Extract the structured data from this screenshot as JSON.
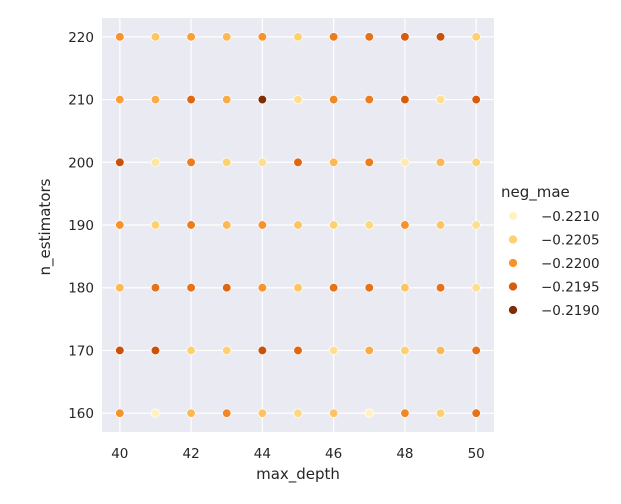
{
  "chart_data": {
    "type": "scatter",
    "title": "",
    "xlabel": "max_depth",
    "ylabel": "n_estimators",
    "xlim": [
      39.5,
      50.5
    ],
    "ylim": [
      157,
      223
    ],
    "xticks": [
      40,
      42,
      44,
      46,
      48,
      50
    ],
    "xtick_labels": [
      "40",
      "42",
      "44",
      "46",
      "48",
      "50"
    ],
    "yticks": [
      160,
      170,
      180,
      190,
      200,
      210,
      220
    ],
    "ytick_labels": [
      "160",
      "170",
      "180",
      "190",
      "200",
      "210",
      "220"
    ],
    "grid": true,
    "background": "#eaeaf2",
    "hue": "neg_mae",
    "legend": {
      "title": "neg_mae",
      "placement": "right",
      "entries": [
        {
          "label": "−0.2210",
          "value": -0.221,
          "color": "#fff2c2"
        },
        {
          "label": "−0.2205",
          "value": -0.2205,
          "color": "#fdd170"
        },
        {
          "label": "−0.2200",
          "value": -0.22,
          "color": "#f7932a"
        },
        {
          "label": "−0.2195",
          "value": -0.2195,
          "color": "#d95c0c"
        },
        {
          "label": "−0.2190",
          "value": -0.219,
          "color": "#7e2d05"
        }
      ]
    },
    "columns": [
      "max_depth",
      "n_estimators",
      "neg_mae"
    ],
    "points": [
      [
        40,
        220,
        -0.22
      ],
      [
        41,
        220,
        -0.2204
      ],
      [
        42,
        220,
        -0.2201
      ],
      [
        43,
        220,
        -0.2203
      ],
      [
        44,
        220,
        -0.22
      ],
      [
        45,
        220,
        -0.2205
      ],
      [
        46,
        220,
        -0.2198
      ],
      [
        47,
        220,
        -0.2197
      ],
      [
        48,
        220,
        -0.2195
      ],
      [
        49,
        220,
        -0.2194
      ],
      [
        50,
        220,
        -0.2205
      ],
      [
        40,
        210,
        -0.2201
      ],
      [
        41,
        210,
        -0.2202
      ],
      [
        42,
        210,
        -0.2196
      ],
      [
        43,
        210,
        -0.2202
      ],
      [
        44,
        210,
        -0.2189
      ],
      [
        45,
        210,
        -0.2207
      ],
      [
        46,
        210,
        -0.2199
      ],
      [
        47,
        210,
        -0.2198
      ],
      [
        48,
        210,
        -0.2195
      ],
      [
        49,
        210,
        -0.2207
      ],
      [
        50,
        210,
        -0.2195
      ],
      [
        40,
        200,
        -0.2194
      ],
      [
        41,
        200,
        -0.2208
      ],
      [
        42,
        200,
        -0.2198
      ],
      [
        43,
        200,
        -0.2205
      ],
      [
        44,
        200,
        -0.2207
      ],
      [
        45,
        200,
        -0.2196
      ],
      [
        46,
        200,
        -0.2203
      ],
      [
        47,
        200,
        -0.2198
      ],
      [
        48,
        200,
        -0.2209
      ],
      [
        49,
        200,
        -0.2203
      ],
      [
        50,
        200,
        -0.2205
      ],
      [
        40,
        190,
        -0.22
      ],
      [
        41,
        190,
        -0.2205
      ],
      [
        42,
        190,
        -0.2198
      ],
      [
        43,
        190,
        -0.2203
      ],
      [
        44,
        190,
        -0.22
      ],
      [
        45,
        190,
        -0.2204
      ],
      [
        46,
        190,
        -0.2205
      ],
      [
        47,
        190,
        -0.2206
      ],
      [
        48,
        190,
        -0.22
      ],
      [
        49,
        190,
        -0.2204
      ],
      [
        50,
        190,
        -0.2207
      ],
      [
        40,
        180,
        -0.2203
      ],
      [
        41,
        180,
        -0.2197
      ],
      [
        42,
        180,
        -0.2197
      ],
      [
        43,
        180,
        -0.2196
      ],
      [
        44,
        180,
        -0.22
      ],
      [
        45,
        180,
        -0.2204
      ],
      [
        46,
        180,
        -0.2197
      ],
      [
        47,
        180,
        -0.2197
      ],
      [
        48,
        180,
        -0.2204
      ],
      [
        49,
        180,
        -0.2197
      ],
      [
        50,
        180,
        -0.2207
      ],
      [
        40,
        170,
        -0.2194
      ],
      [
        41,
        170,
        -0.2194
      ],
      [
        42,
        170,
        -0.2205
      ],
      [
        43,
        170,
        -0.2205
      ],
      [
        44,
        170,
        -0.2194
      ],
      [
        45,
        170,
        -0.2196
      ],
      [
        46,
        170,
        -0.2207
      ],
      [
        47,
        170,
        -0.2202
      ],
      [
        48,
        170,
        -0.2205
      ],
      [
        49,
        170,
        -0.2203
      ],
      [
        50,
        170,
        -0.2197
      ],
      [
        40,
        160,
        -0.22
      ],
      [
        41,
        160,
        -0.221
      ],
      [
        42,
        160,
        -0.2203
      ],
      [
        43,
        160,
        -0.2199
      ],
      [
        44,
        160,
        -0.2204
      ],
      [
        45,
        160,
        -0.2206
      ],
      [
        46,
        160,
        -0.2204
      ],
      [
        47,
        160,
        -0.221
      ],
      [
        48,
        160,
        -0.2199
      ],
      [
        49,
        160,
        -0.2205
      ],
      [
        50,
        160,
        -0.2197
      ]
    ]
  }
}
